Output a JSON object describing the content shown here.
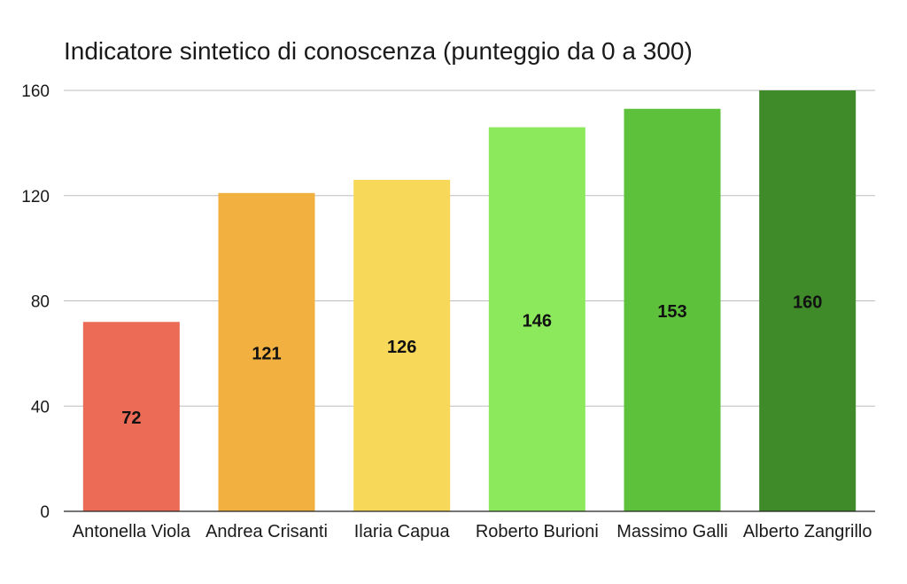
{
  "chart_data": {
    "type": "bar",
    "title": "Indicatore sintetico di conoscenza (punteggio da 0 a 300)",
    "xlabel": "",
    "ylabel": "",
    "categories": [
      "Antonella Viola",
      "Andrea Crisanti",
      "Ilaria Capua",
      "Roberto Burioni",
      "Massimo Galli",
      "Alberto Zangrillo"
    ],
    "values": [
      72,
      121,
      126,
      146,
      153,
      160
    ],
    "data_labels": [
      "72",
      "121",
      "126",
      "146",
      "153",
      "160"
    ],
    "bar_colors": [
      "#ec6b57",
      "#f1b03f",
      "#f8d858",
      "#8ce95b",
      "#5dc13b",
      "#3f8b2a"
    ],
    "ylim": [
      0,
      160
    ],
    "yticks": [
      0,
      40,
      80,
      120,
      160
    ],
    "ytick_labels": [
      "0",
      "40",
      "80",
      "120",
      "160"
    ],
    "grid": true,
    "legend": "none"
  }
}
